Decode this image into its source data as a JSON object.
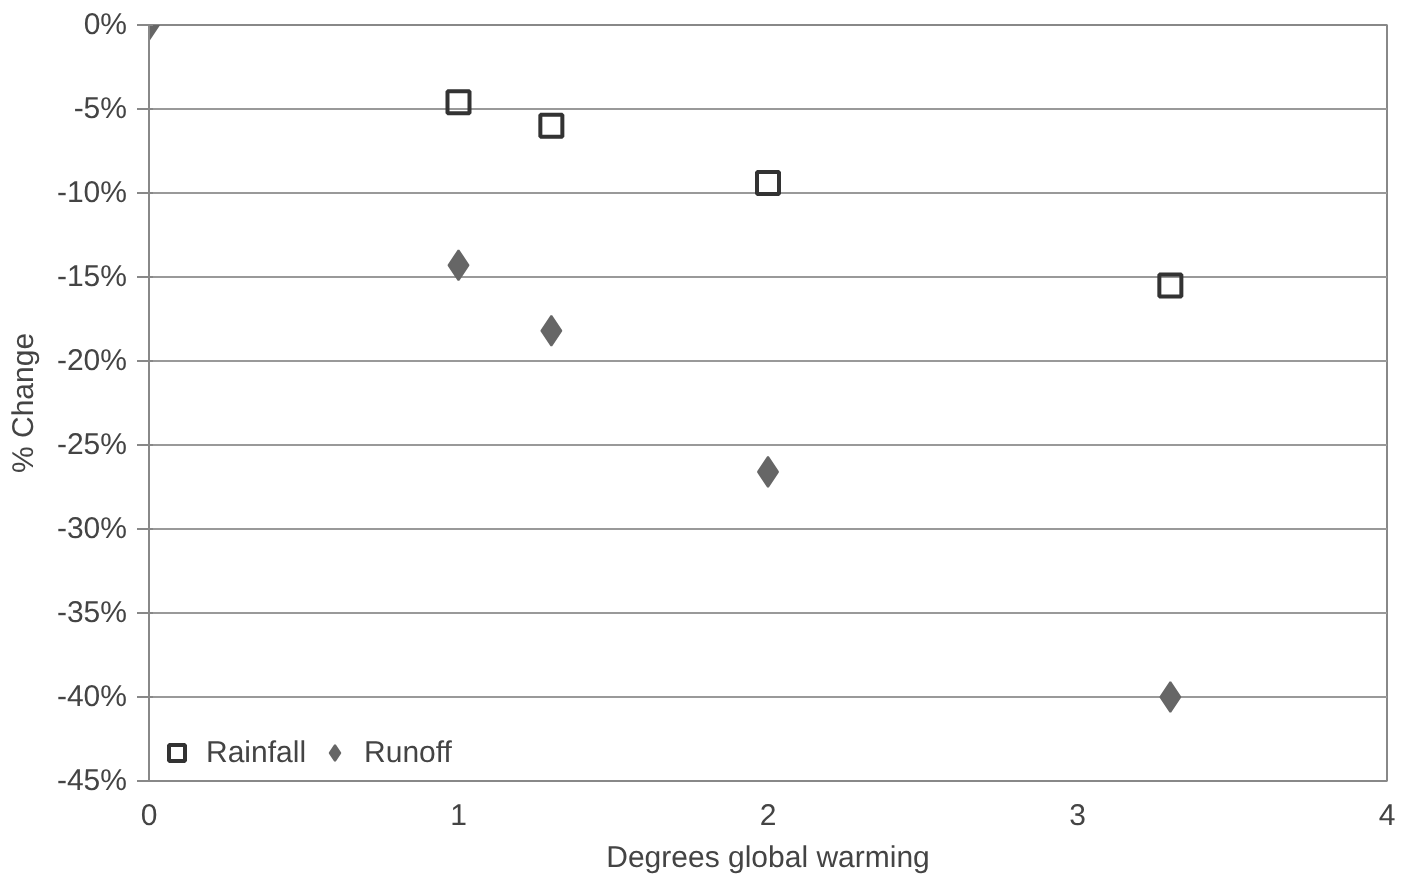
{
  "chart_data": {
    "type": "scatter",
    "xlabel": "Degrees global warming",
    "ylabel": "% Change",
    "xlim": [
      0,
      4
    ],
    "xticks": [
      0,
      1,
      2,
      3,
      4
    ],
    "ylim": [
      -45,
      0
    ],
    "yticks": [
      {
        "value": 0,
        "label": "0%"
      },
      {
        "value": -5,
        "label": "-5%"
      },
      {
        "value": -10,
        "label": "-10%"
      },
      {
        "value": -15,
        "label": "-15%"
      },
      {
        "value": -20,
        "label": "-20%"
      },
      {
        "value": -25,
        "label": "-25%"
      },
      {
        "value": -30,
        "label": "-30%"
      },
      {
        "value": -35,
        "label": "-35%"
      },
      {
        "value": -40,
        "label": "-40%"
      },
      {
        "value": -45,
        "label": "-45%"
      }
    ],
    "grid": "y",
    "legend": "bottom left",
    "series": [
      {
        "name": "Rainfall",
        "color": "#333333",
        "marker": "square",
        "x": [
          1,
          1.3,
          2,
          3.3
        ],
        "values": [
          -4.6,
          -6.0,
          -9.4,
          -15.5
        ]
      },
      {
        "name": "Runoff",
        "color": "#666666",
        "marker": "diamond",
        "x": [
          0,
          1,
          1.3,
          2,
          3.3
        ],
        "values": [
          0,
          -14.3,
          -18.2,
          -26.6,
          -40.0
        ]
      }
    ]
  }
}
